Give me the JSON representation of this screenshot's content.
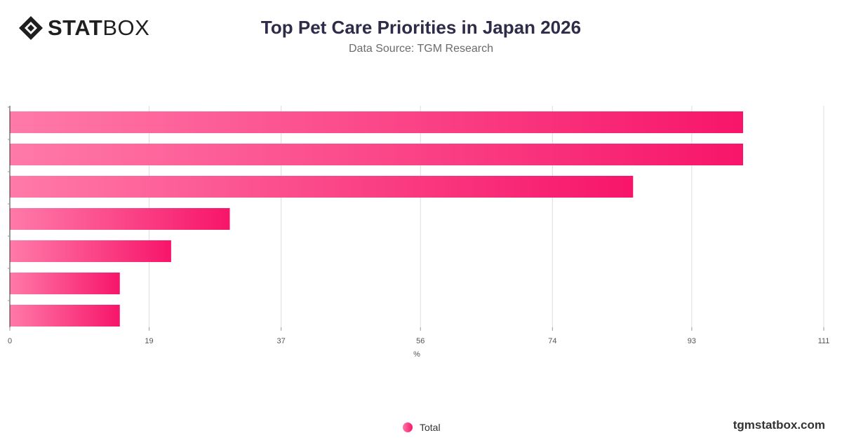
{
  "header": {
    "logo_bold": "STAT",
    "logo_light": "BOX",
    "title": "Top Pet Care Priorities in Japan 2026",
    "subtitle": "Data Source: TGM Research"
  },
  "chart_data": {
    "type": "bar",
    "orientation": "horizontal",
    "categories": [
      "",
      "",
      "",
      "",
      "",
      "",
      ""
    ],
    "series": [
      {
        "name": "Total",
        "values": [
          100,
          100,
          85,
          30,
          22,
          15,
          15
        ]
      }
    ],
    "xlabel": "%",
    "xlim": [
      0,
      111
    ],
    "xticks": [
      0,
      19,
      37,
      56,
      74,
      93,
      111
    ],
    "grid": true,
    "legend_position": "bottom-center",
    "colors": {
      "bar_start": "#ff7aa8",
      "bar_end": "#f7156a",
      "grid": "#dddddd",
      "axis": "#333333"
    }
  },
  "footer": {
    "legend_label": "Total",
    "site": "tgmstatbox.com"
  }
}
